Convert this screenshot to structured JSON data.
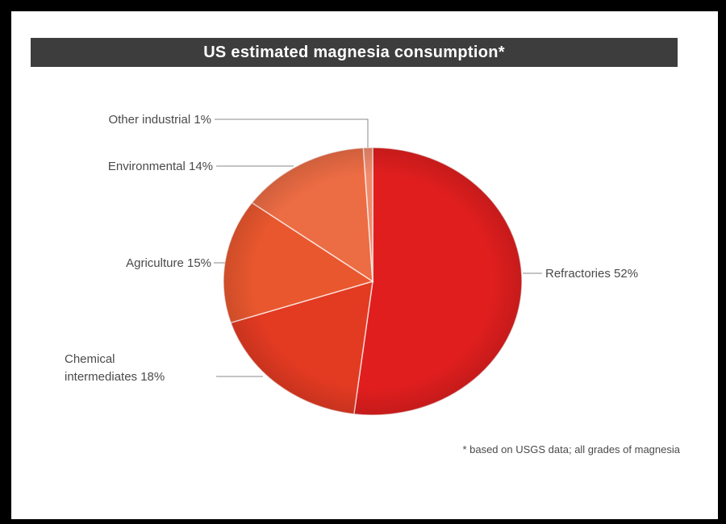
{
  "chart_data": {
    "type": "pie",
    "title": "US estimated magnesia consumption*",
    "footnote": "* based on USGS data; all grades of magnesia",
    "slices": [
      {
        "label": "Refractories 52%",
        "name": "Refractories",
        "value": 52,
        "color": "#e01e1e"
      },
      {
        "label": "Chemical intermediates 18%",
        "name": "Chemical intermediates",
        "value": 18,
        "color": "#e33a22"
      },
      {
        "label": "Agriculture 15%",
        "name": "Agriculture",
        "value": 15,
        "color": "#e9572e"
      },
      {
        "label": "Environmental 14%",
        "name": "Environmental",
        "value": 14,
        "color": "#ec6c44"
      },
      {
        "label": "Other industrial  1%",
        "name": "Other industrial",
        "value": 1,
        "color": "#f08a6c"
      }
    ],
    "labels": {
      "refractories": "Refractories 52%",
      "chemical_line1": "Chemical",
      "chemical_line2": "intermediates 18%",
      "agriculture": "Agriculture 15%",
      "environmental": "Environmental 14%",
      "other": "Other industrial  1%"
    }
  }
}
